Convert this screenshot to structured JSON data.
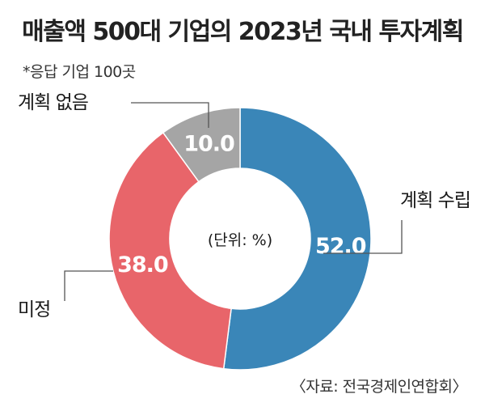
{
  "header": {
    "title": "매출액 500대 기업의 2023년 국내 투자계획",
    "subtitle": "*응답 기업 100곳"
  },
  "footer": {
    "source": "〈자료: 전국경제인연합회〉"
  },
  "colors": {
    "plan_established": "#3a86b8",
    "undecided": "#e8656a",
    "no_plan": "#a5a5a5",
    "leader_line": "#555555"
  },
  "chart_data": {
    "type": "pie",
    "donut": true,
    "center_label": "(단위: %)",
    "unit": "%",
    "slices": [
      {
        "label": "계획 수립",
        "value": 52.0,
        "value_text": "52.0"
      },
      {
        "label": "미정",
        "value": 38.0,
        "value_text": "38.0"
      },
      {
        "label": "계획 없음",
        "value": 10.0,
        "value_text": "10.0"
      }
    ]
  }
}
